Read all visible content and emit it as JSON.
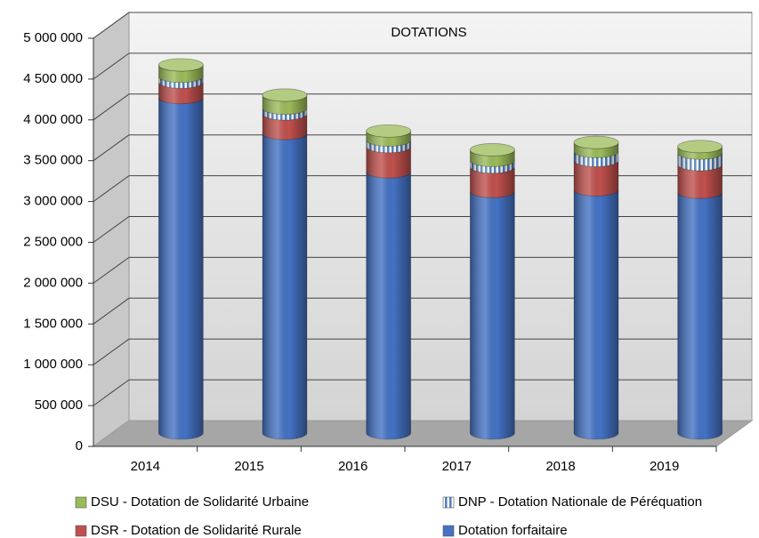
{
  "chart_data": {
    "type": "bar",
    "stacked": true,
    "title": "DOTATIONS",
    "categories": [
      "2014",
      "2015",
      "2016",
      "2017",
      "2018",
      "2019"
    ],
    "series": [
      {
        "name": "Dotation forfaitaire",
        "color": "#4472c4",
        "values": [
          4110000,
          3670000,
          3200000,
          2960000,
          2980000,
          2950000
        ]
      },
      {
        "name": "DSR - Dotation de Solidarité Rurale",
        "color": "#c0504d",
        "values": [
          190000,
          240000,
          310000,
          300000,
          360000,
          340000
        ]
      },
      {
        "name": "DNP - Dotation Nationale de Péréquation",
        "color": "#4f81bd",
        "pattern": "stripes",
        "values": [
          70000,
          70000,
          80000,
          80000,
          110000,
          140000
        ]
      },
      {
        "name": "DSU - Dotation de Solidarité Urbaine",
        "color": "#9bbb59",
        "values": [
          140000,
          160000,
          110000,
          130000,
          110000,
          80000
        ]
      }
    ],
    "ylim": [
      0,
      5000000
    ],
    "yticks": [
      0,
      {
        "value": 500000,
        "label": "500 000"
      },
      {
        "value": 1000000,
        "label": "1 000 000"
      },
      {
        "value": 1500000,
        "label": "1 500 000"
      },
      {
        "value": 2000000,
        "label": "2 000 000"
      },
      {
        "value": 2500000,
        "label": "2 500 000"
      },
      {
        "value": 3000000,
        "label": "3 000 000"
      },
      {
        "value": 3500000,
        "label": "3 500 000"
      },
      {
        "value": 4000000,
        "label": "4 000 000"
      },
      {
        "value": 4500000,
        "label": "4 500 000"
      },
      {
        "value": 5000000,
        "label": "5 000 000"
      }
    ],
    "grid": true
  }
}
